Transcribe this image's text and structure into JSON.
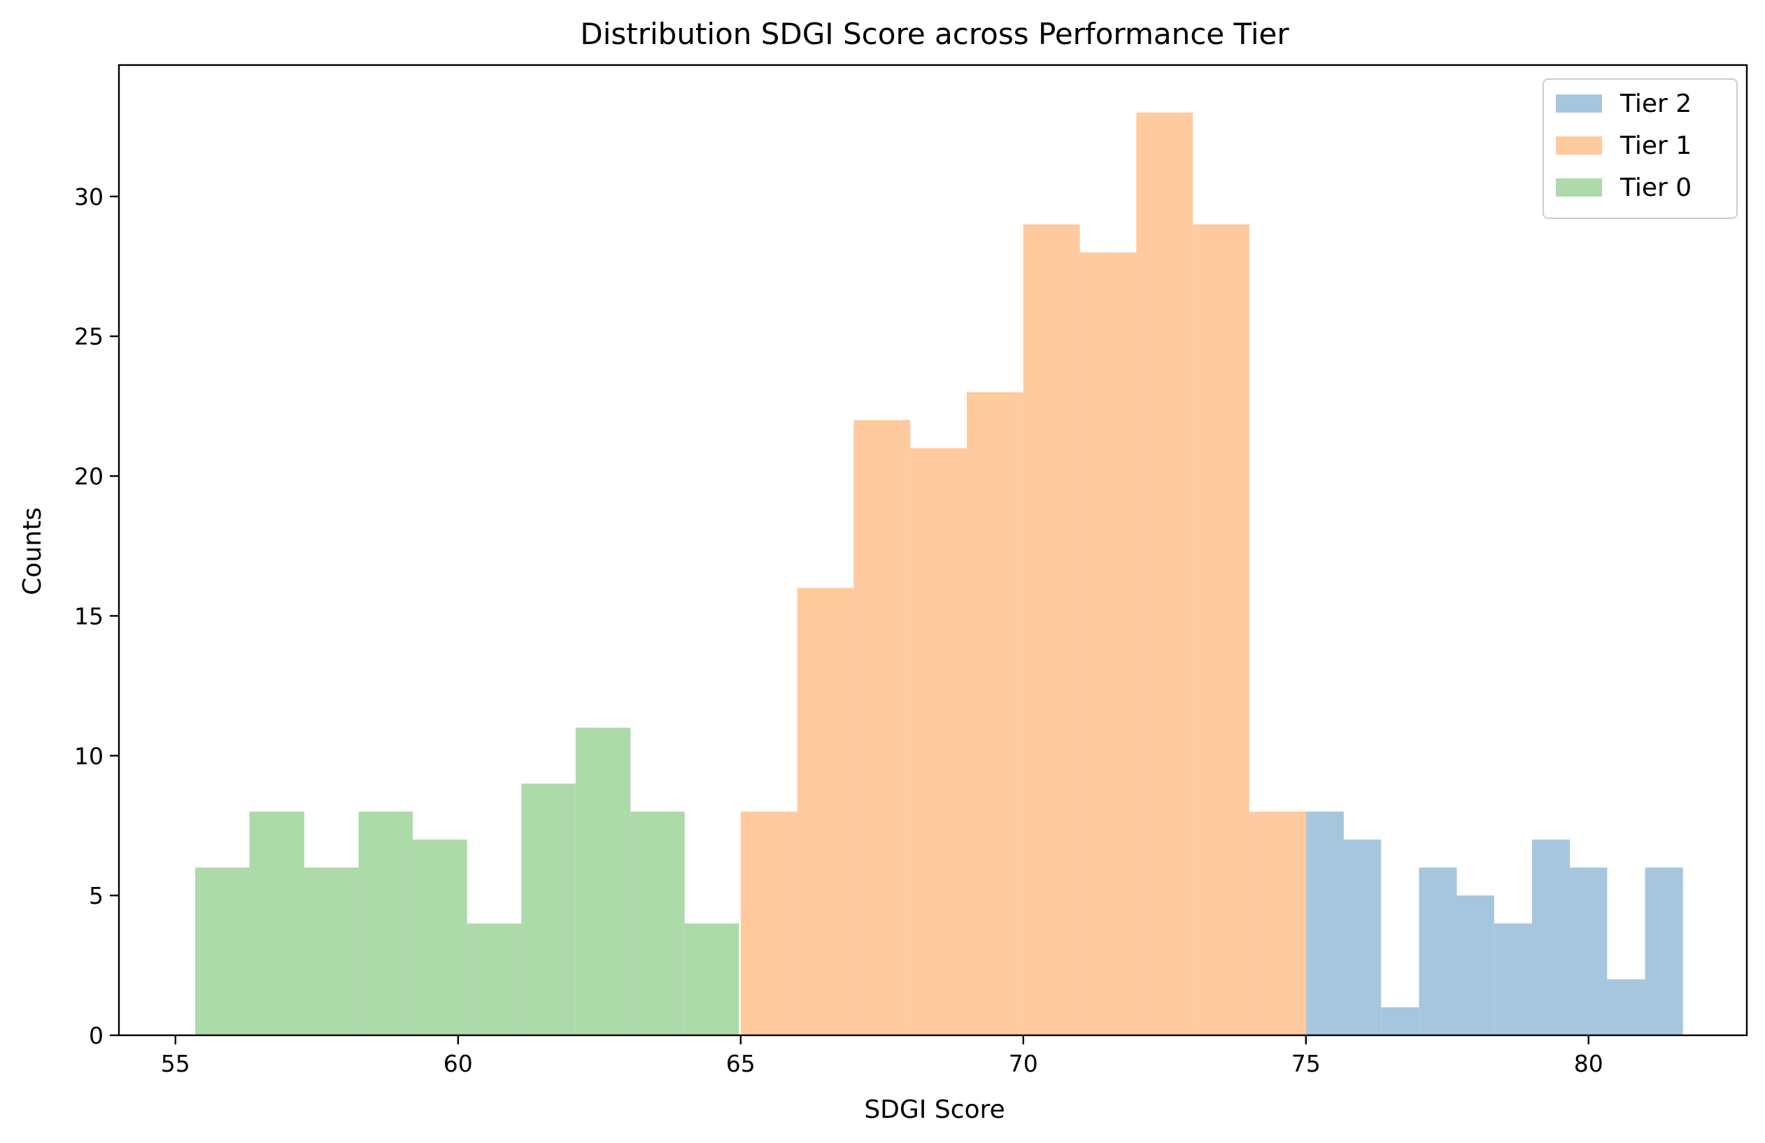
{
  "chart_data": {
    "type": "bar",
    "title": "Distribution SDGI Score across Performance Tier",
    "xlabel": "SDGI Score",
    "ylabel": "Counts",
    "xlim": [
      54.0,
      82.8
    ],
    "ylim": [
      0,
      34.7
    ],
    "xticks": [
      55,
      60,
      65,
      70,
      75,
      80
    ],
    "yticks": [
      0,
      5,
      10,
      15,
      20,
      25,
      30
    ],
    "grid": false,
    "legend_position": "top-right",
    "series": [
      {
        "name": "Tier 2",
        "color": "#a6c6de",
        "bin_edges": [
          75.0,
          75.67,
          76.33,
          77.0,
          77.67,
          78.33,
          79.0,
          79.67,
          80.33,
          81.0,
          81.67
        ],
        "counts": [
          8,
          7,
          1,
          6,
          5,
          4,
          7,
          6,
          2,
          6
        ]
      },
      {
        "name": "Tier 1",
        "color": "#ffca9e",
        "bin_edges": [
          65.0,
          66.0,
          67.0,
          68.0,
          69.0,
          70.0,
          71.0,
          72.0,
          73.0,
          74.0,
          75.0
        ],
        "counts": [
          8,
          16,
          22,
          21,
          23,
          29,
          28,
          33,
          29,
          8
        ]
      },
      {
        "name": "Tier 0",
        "color": "#acdaa9",
        "bin_edges": [
          55.35,
          56.31,
          57.28,
          58.24,
          59.2,
          60.16,
          61.12,
          62.08,
          63.05,
          64.01,
          64.97
        ],
        "counts": [
          6,
          8,
          6,
          8,
          7,
          4,
          9,
          11,
          8,
          4
        ]
      }
    ]
  }
}
